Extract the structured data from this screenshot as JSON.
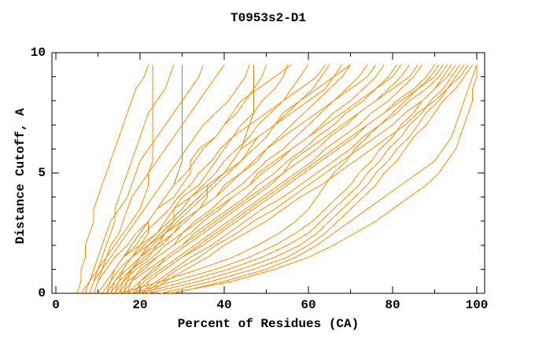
{
  "chart_data": {
    "type": "line",
    "title": "T0953s2-D1",
    "xlabel": "Percent of Residues (CA)",
    "ylabel": "Distance Cutoff, A",
    "xlim": [
      -1,
      102
    ],
    "ylim": [
      0,
      10
    ],
    "grid": false,
    "legend": "none",
    "x_major_ticks": [
      0,
      20,
      40,
      60,
      80,
      100
    ],
    "x_minor_ticks": [
      10,
      30,
      50,
      70,
      90
    ],
    "x_tick_labels": [
      "0",
      "20",
      "40",
      "60",
      "80",
      "100"
    ],
    "y_major_ticks": [
      0,
      5,
      10
    ],
    "y_minor_ticks": [
      1,
      2,
      3,
      4,
      6,
      7,
      8,
      9
    ],
    "y_tick_labels": [
      "0",
      "5",
      "10"
    ],
    "colors": {
      "line": "#ff8c00",
      "alt_line": "#b8860b",
      "axis": "#000000",
      "background": "#ffffff"
    },
    "y_levels": [
      0,
      0.5,
      1,
      1.5,
      2,
      2.5,
      3,
      3.5,
      4,
      4.5,
      5,
      5.5,
      6,
      6.5,
      7,
      7.5,
      8,
      8.5,
      9,
      9.5
    ],
    "series": [
      {
        "c": 0,
        "x": [
          5,
          6,
          6,
          7,
          7,
          8,
          9,
          9,
          10,
          11,
          12,
          13,
          14,
          15,
          16,
          17,
          18,
          19,
          21,
          22
        ]
      },
      {
        "c": 0,
        "x": [
          6,
          8,
          10,
          12,
          14,
          16,
          18,
          20,
          21,
          22,
          22,
          23,
          23,
          23,
          23,
          23,
          23,
          23,
          23,
          23
        ]
      },
      {
        "c": 0,
        "x": [
          8,
          9,
          10,
          11,
          12,
          13,
          14,
          14,
          15,
          16,
          17,
          18,
          19,
          20,
          21,
          22,
          24,
          26,
          27,
          28
        ]
      },
      {
        "c": 0,
        "x": [
          7,
          8,
          9,
          10,
          11,
          12,
          13,
          15,
          17,
          18,
          19,
          20,
          22,
          24,
          26,
          28,
          30,
          32,
          34,
          35
        ]
      },
      {
        "c": 0,
        "x": [
          9,
          10,
          11,
          12,
          13,
          15,
          16,
          17,
          18,
          20,
          22,
          24,
          26,
          28,
          30,
          32,
          34,
          36,
          38,
          40
        ]
      },
      {
        "c": 1,
        "x": [
          10,
          12,
          14,
          16,
          18,
          20,
          22,
          24,
          26,
          28,
          29,
          30,
          30,
          30,
          30,
          30,
          30,
          30,
          30,
          30
        ]
      },
      {
        "c": 1,
        "x": [
          14,
          16,
          18,
          20,
          22,
          25,
          28,
          31,
          34,
          37,
          40,
          42,
          44,
          45,
          46,
          47,
          47,
          47,
          47,
          47
        ]
      },
      {
        "c": 0,
        "x": [
          8,
          9,
          11,
          13,
          15,
          17,
          19,
          21,
          23,
          25,
          27,
          29,
          31,
          33,
          35,
          38,
          41,
          43,
          45,
          46
        ]
      },
      {
        "c": 0,
        "x": [
          9,
          10,
          12,
          14,
          17,
          19,
          22,
          24,
          26,
          28,
          31,
          33,
          35,
          38,
          40,
          43,
          45,
          47,
          49,
          50
        ]
      },
      {
        "c": 0,
        "x": [
          10,
          12,
          14,
          16,
          19,
          21,
          24,
          27,
          29,
          32,
          34,
          37,
          39,
          42,
          44,
          47,
          49,
          52,
          54,
          55
        ]
      },
      {
        "c": 0,
        "x": [
          11,
          13,
          15,
          18,
          21,
          24,
          27,
          30,
          32,
          35,
          38,
          40,
          43,
          46,
          48,
          51,
          54,
          56,
          58,
          60
        ]
      },
      {
        "c": 0,
        "x": [
          12,
          14,
          17,
          20,
          23,
          26,
          29,
          32,
          35,
          38,
          41,
          44,
          47,
          50,
          52,
          55,
          58,
          61,
          63,
          65
        ]
      },
      {
        "c": 0,
        "x": [
          13,
          15,
          18,
          21,
          25,
          28,
          31,
          34,
          38,
          41,
          44,
          47,
          50,
          53,
          56,
          59,
          62,
          65,
          68,
          70
        ]
      },
      {
        "c": 0,
        "x": [
          14,
          16,
          19,
          23,
          26,
          30,
          33,
          37,
          40,
          44,
          47,
          50,
          54,
          57,
          60,
          63,
          66,
          69,
          72,
          74
        ]
      },
      {
        "c": 0,
        "x": [
          15,
          17,
          21,
          24,
          28,
          32,
          35,
          39,
          42,
          46,
          49,
          53,
          56,
          60,
          63,
          66,
          70,
          73,
          76,
          78
        ]
      },
      {
        "c": 0,
        "x": [
          16,
          18,
          22,
          26,
          30,
          33,
          37,
          41,
          45,
          48,
          52,
          55,
          59,
          62,
          66,
          69,
          73,
          76,
          79,
          81
        ]
      },
      {
        "c": 0,
        "x": [
          17,
          20,
          23,
          27,
          31,
          35,
          39,
          43,
          47,
          51,
          54,
          58,
          62,
          65,
          69,
          72,
          76,
          79,
          82,
          84
        ]
      },
      {
        "c": 0,
        "x": [
          18,
          21,
          25,
          29,
          33,
          37,
          41,
          45,
          49,
          53,
          57,
          61,
          64,
          68,
          72,
          75,
          79,
          82,
          85,
          87
        ]
      },
      {
        "c": 0,
        "x": [
          19,
          22,
          26,
          30,
          35,
          39,
          43,
          47,
          51,
          55,
          59,
          63,
          67,
          71,
          74,
          78,
          81,
          85,
          88,
          90
        ]
      },
      {
        "c": 0,
        "x": [
          20,
          24,
          28,
          32,
          37,
          41,
          45,
          49,
          54,
          58,
          62,
          66,
          70,
          73,
          77,
          81,
          84,
          88,
          91,
          93
        ]
      },
      {
        "c": 0,
        "x": [
          21,
          25,
          29,
          34,
          38,
          43,
          47,
          52,
          56,
          60,
          64,
          68,
          72,
          76,
          80,
          83,
          87,
          90,
          93,
          95
        ]
      },
      {
        "c": 0,
        "x": [
          22,
          26,
          31,
          36,
          40,
          45,
          50,
          54,
          58,
          63,
          67,
          71,
          75,
          79,
          83,
          86,
          90,
          93,
          96,
          98
        ]
      },
      {
        "c": 0,
        "x": [
          12,
          13,
          14,
          16,
          20,
          22,
          22,
          24,
          28,
          30,
          32,
          32,
          34,
          38,
          40,
          42,
          44,
          48,
          52,
          56
        ]
      },
      {
        "c": 0,
        "x": [
          14,
          15,
          16,
          18,
          22,
          26,
          28,
          28,
          30,
          34,
          36,
          38,
          40,
          42,
          46,
          50,
          54,
          58,
          62,
          64
        ]
      },
      {
        "c": 0,
        "x": [
          16,
          17,
          18,
          20,
          24,
          26,
          30,
          34,
          36,
          36,
          40,
          44,
          46,
          48,
          52,
          56,
          60,
          64,
          66,
          68
        ]
      },
      {
        "c": 0,
        "x": [
          13,
          14,
          16,
          18,
          20,
          24,
          26,
          28,
          32,
          36,
          40,
          42,
          44,
          48,
          52,
          54,
          58,
          62,
          66,
          70
        ]
      },
      {
        "c": 0,
        "x": [
          15,
          16,
          18,
          22,
          24,
          28,
          30,
          34,
          38,
          40,
          44,
          48,
          50,
          54,
          58,
          62,
          66,
          70,
          74,
          76
        ]
      },
      {
        "c": 0,
        "x": [
          17,
          18,
          20,
          24,
          28,
          30,
          34,
          38,
          42,
          46,
          48,
          52,
          56,
          60,
          64,
          68,
          72,
          76,
          80,
          82
        ]
      },
      {
        "c": 0,
        "x": [
          19,
          20,
          24,
          26,
          30,
          34,
          38,
          42,
          46,
          50,
          54,
          56,
          60,
          64,
          68,
          72,
          76,
          80,
          84,
          86
        ]
      },
      {
        "c": 0,
        "x": [
          21,
          22,
          26,
          30,
          34,
          38,
          42,
          46,
          50,
          54,
          58,
          62,
          66,
          70,
          74,
          78,
          82,
          86,
          90,
          92
        ]
      },
      {
        "c": 0,
        "x": [
          15,
          25,
          34,
          42,
          48,
          53,
          57,
          60,
          62,
          64,
          66,
          69,
          71,
          74,
          77,
          80,
          83,
          86,
          89,
          91
        ]
      },
      {
        "c": 0,
        "x": [
          18,
          28,
          38,
          46,
          52,
          57,
          61,
          64,
          67,
          70,
          72,
          75,
          77,
          80,
          82,
          85,
          87,
          90,
          92,
          94
        ]
      },
      {
        "c": 0,
        "x": [
          20,
          31,
          41,
          49,
          55,
          60,
          63,
          66,
          69,
          72,
          74,
          77,
          79,
          82,
          84,
          87,
          89,
          92,
          94,
          96
        ]
      },
      {
        "c": 0,
        "x": [
          22,
          34,
          44,
          52,
          58,
          62,
          65,
          68,
          71,
          74,
          76,
          79,
          81,
          84,
          86,
          88,
          91,
          93,
          95,
          97
        ]
      },
      {
        "c": 0,
        "x": [
          25,
          37,
          47,
          55,
          60,
          64,
          67,
          70,
          73,
          76,
          78,
          81,
          83,
          85,
          88,
          90,
          92,
          95,
          97,
          99
        ]
      },
      {
        "c": 0,
        "x": [
          28,
          40,
          50,
          57,
          62,
          66,
          70,
          74,
          78,
          82,
          86,
          90,
          92,
          94,
          95,
          96,
          97,
          98,
          99,
          100
        ]
      },
      {
        "c": 0,
        "x": [
          27,
          42,
          52,
          60,
          66,
          71,
          76,
          80,
          84,
          88,
          91,
          93,
          95,
          96,
          97,
          98,
          99,
          99,
          100,
          100
        ]
      }
    ]
  }
}
